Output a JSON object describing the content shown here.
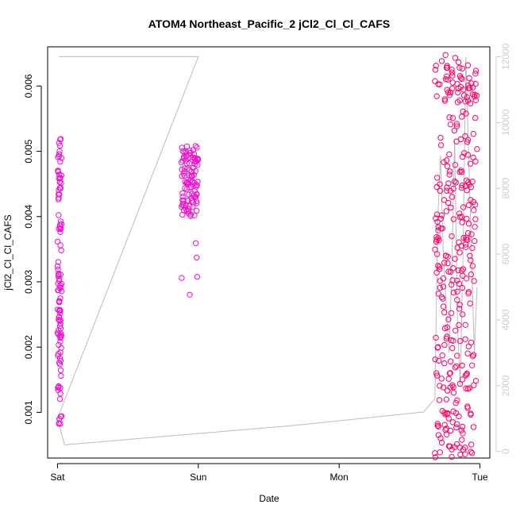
{
  "chart_data": {
    "type": "scatter",
    "title": "ATOM4 Northeast_Pacific_2 jCl2_Cl_Cl_CAFS",
    "xlabel": "Date",
    "ylabel": "jCl2_Cl_Cl_CAFS",
    "x_ticks": [
      "Sat",
      "Sun",
      "Mon",
      "Tue"
    ],
    "y_ticks": [
      "0.001",
      "0.002",
      "0.003",
      "0.004",
      "0.005",
      "0.006"
    ],
    "y2_ticks": [
      "0",
      "2000",
      "4000",
      "6000",
      "8000",
      "10000",
      "12000"
    ],
    "xlim_days": [
      -0.07,
      3.07
    ],
    "ylim": [
      0.0003,
      0.0066
    ],
    "y2lim": [
      -200,
      12300
    ],
    "grid": false,
    "colors": {
      "points_early": "#ee11cc",
      "points_late": "#ff0066",
      "secondary_line": "#bbbbbb",
      "secondary_axis": "#cccccc",
      "axis": "#000000"
    },
    "series": [
      {
        "values_note": "jCl2 values, open circles",
        "clusters": [
          {
            "x": [
              0.0,
              0.03
            ],
            "y": [
              0.0008,
              0.0052
            ]
          },
          {
            "x": [
              0.88,
              1.0
            ],
            "y": [
              0.0027,
              0.0051
            ]
          },
          {
            "x": [
              2.68,
              2.98
            ],
            "y": [
              0.0003,
              0.0065
            ]
          }
        ]
      }
    ],
    "secondary": {
      "path": [
        [
          0.01,
          12000
        ],
        [
          0.02,
          12000
        ],
        [
          0.98,
          12000
        ],
        [
          1.0,
          12000
        ],
        [
          0.0,
          1000
        ],
        [
          0.05,
          200
        ],
        [
          1.7,
          800
        ],
        [
          2.6,
          1200
        ],
        [
          2.68,
          1600
        ],
        [
          2.7,
          7000
        ],
        [
          2.72,
          9000
        ],
        [
          2.74,
          6000
        ],
        [
          2.76,
          4500
        ],
        [
          2.78,
          3000
        ],
        [
          2.8,
          5500
        ],
        [
          2.82,
          9500
        ],
        [
          2.84,
          4000
        ],
        [
          2.86,
          2000
        ],
        [
          2.88,
          6000
        ],
        [
          2.9,
          12000
        ],
        [
          2.92,
          9000
        ],
        [
          2.94,
          6000
        ],
        [
          2.96,
          3000
        ],
        [
          2.98,
          5000
        ]
      ]
    }
  }
}
